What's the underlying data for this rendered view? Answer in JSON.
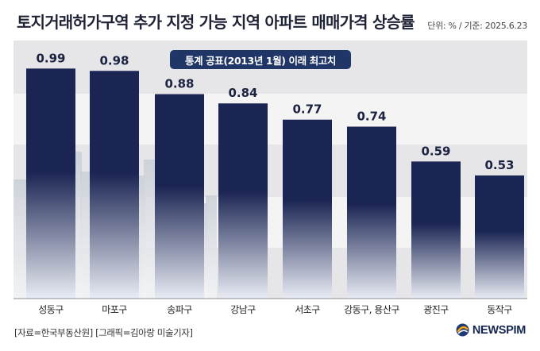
{
  "header": {
    "title": "토지거래허가구역 추가 지정 가능 지역 아파트 매매가격 상승률",
    "unit_note": "단위: % / 기준: 2025.6.23"
  },
  "badge": {
    "label": "통계 공표(2013년 1월) 이래 최고치"
  },
  "footer": {
    "source": "[자료=한국부동산원] [그래픽=김아랑 미술기자]",
    "logo_text": "NEWSPIM",
    "logo_icon": "newspim-swirl-icon"
  },
  "colors": {
    "bar_top": "#1b2553",
    "bar_bottom": "#e9ecf4",
    "band_dark": "#e6e6e8",
    "band_light": "#f4f4f5",
    "accent": "#1f3666"
  },
  "chart_data": {
    "type": "bar",
    "categories": [
      "성동구",
      "마포구",
      "송파구",
      "강남구",
      "서초구",
      "강동구, 용산구",
      "광진구",
      "동작구"
    ],
    "values": [
      0.99,
      0.98,
      0.88,
      0.84,
      0.77,
      0.74,
      0.59,
      0.53
    ],
    "value_labels": [
      "0.99",
      "0.98",
      "0.88",
      "0.84",
      "0.77",
      "0.74",
      "0.59",
      "0.53"
    ],
    "title": "토지거래허가구역 추가 지정 가능 지역 아파트 매매가격 상승률",
    "xlabel": "",
    "ylabel": "",
    "ylim": [
      0,
      1.08
    ],
    "grid": true,
    "legend": "none"
  }
}
